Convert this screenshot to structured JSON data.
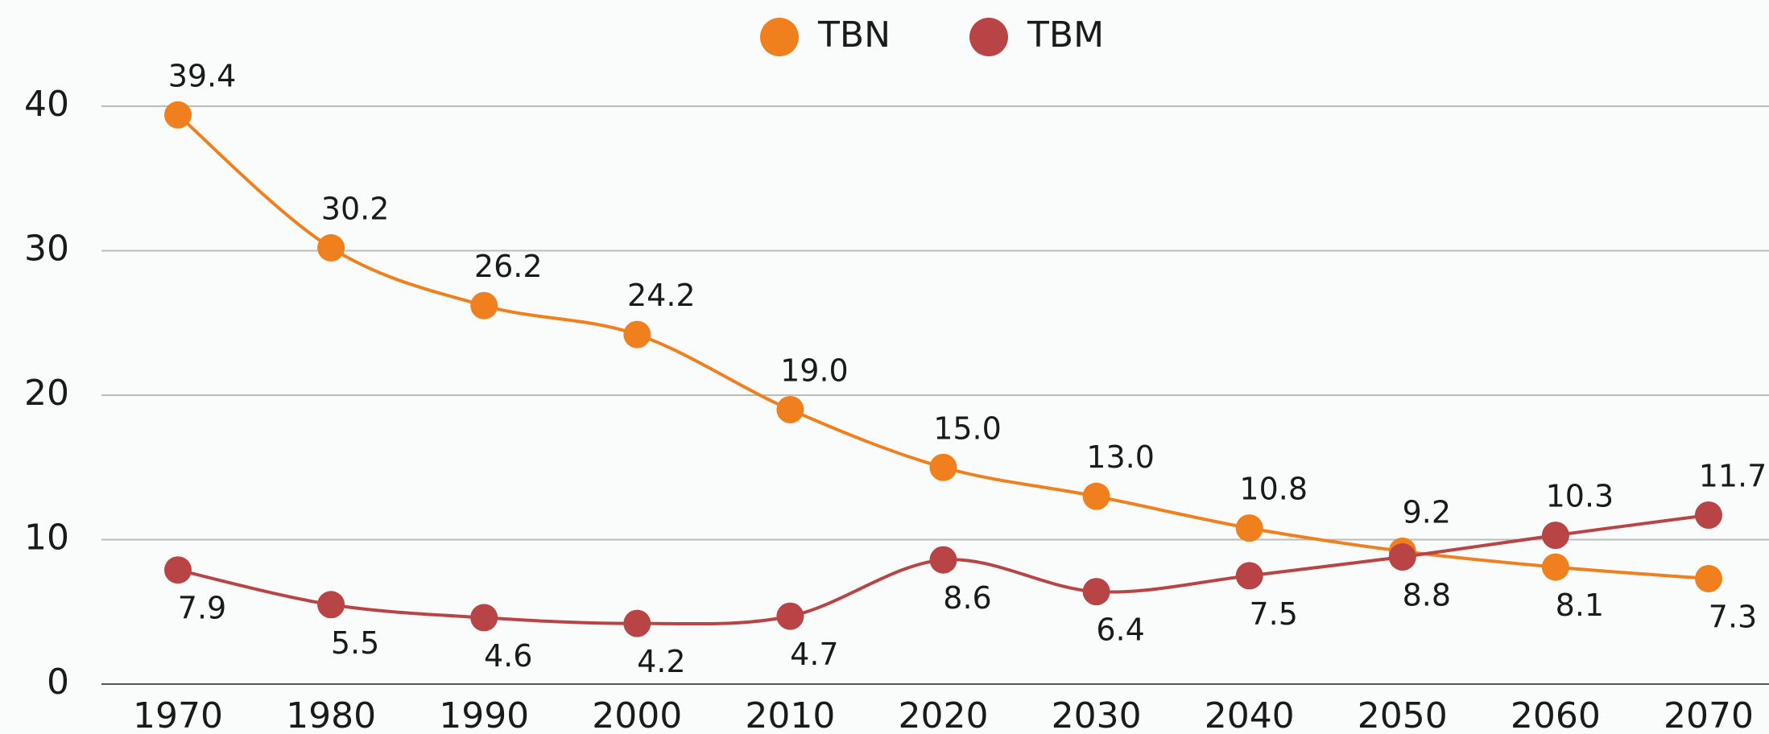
{
  "chart_data": {
    "type": "line",
    "categories": [
      "1970",
      "1980",
      "1990",
      "2000",
      "2010",
      "2020",
      "2030",
      "2040",
      "2050",
      "2060",
      "2070"
    ],
    "series": [
      {
        "name": "TBN",
        "color": "#f07f1e",
        "values": [
          39.4,
          30.2,
          26.2,
          24.2,
          19.0,
          15.0,
          13.0,
          10.8,
          9.2,
          8.1,
          7.3
        ],
        "value_labels": [
          "39.4",
          "30.2",
          "26.2",
          "24.2",
          "19.0",
          "15.0",
          "13.0",
          "10.8",
          "9.2",
          "8.1",
          "7.3"
        ]
      },
      {
        "name": "TBM",
        "color": "#b94445",
        "values": [
          7.9,
          5.5,
          4.6,
          4.2,
          4.7,
          8.6,
          6.4,
          7.5,
          8.8,
          10.3,
          11.7
        ],
        "value_labels": [
          "7.9",
          "5.5",
          "4.6",
          "4.2",
          "4.7",
          "8.6",
          "6.4",
          "7.5",
          "8.8",
          "10.3",
          "11.7"
        ]
      }
    ],
    "ylim": [
      0,
      40
    ],
    "yticks": [
      0,
      10,
      20,
      30,
      40
    ],
    "grid": true,
    "legend": "top"
  }
}
